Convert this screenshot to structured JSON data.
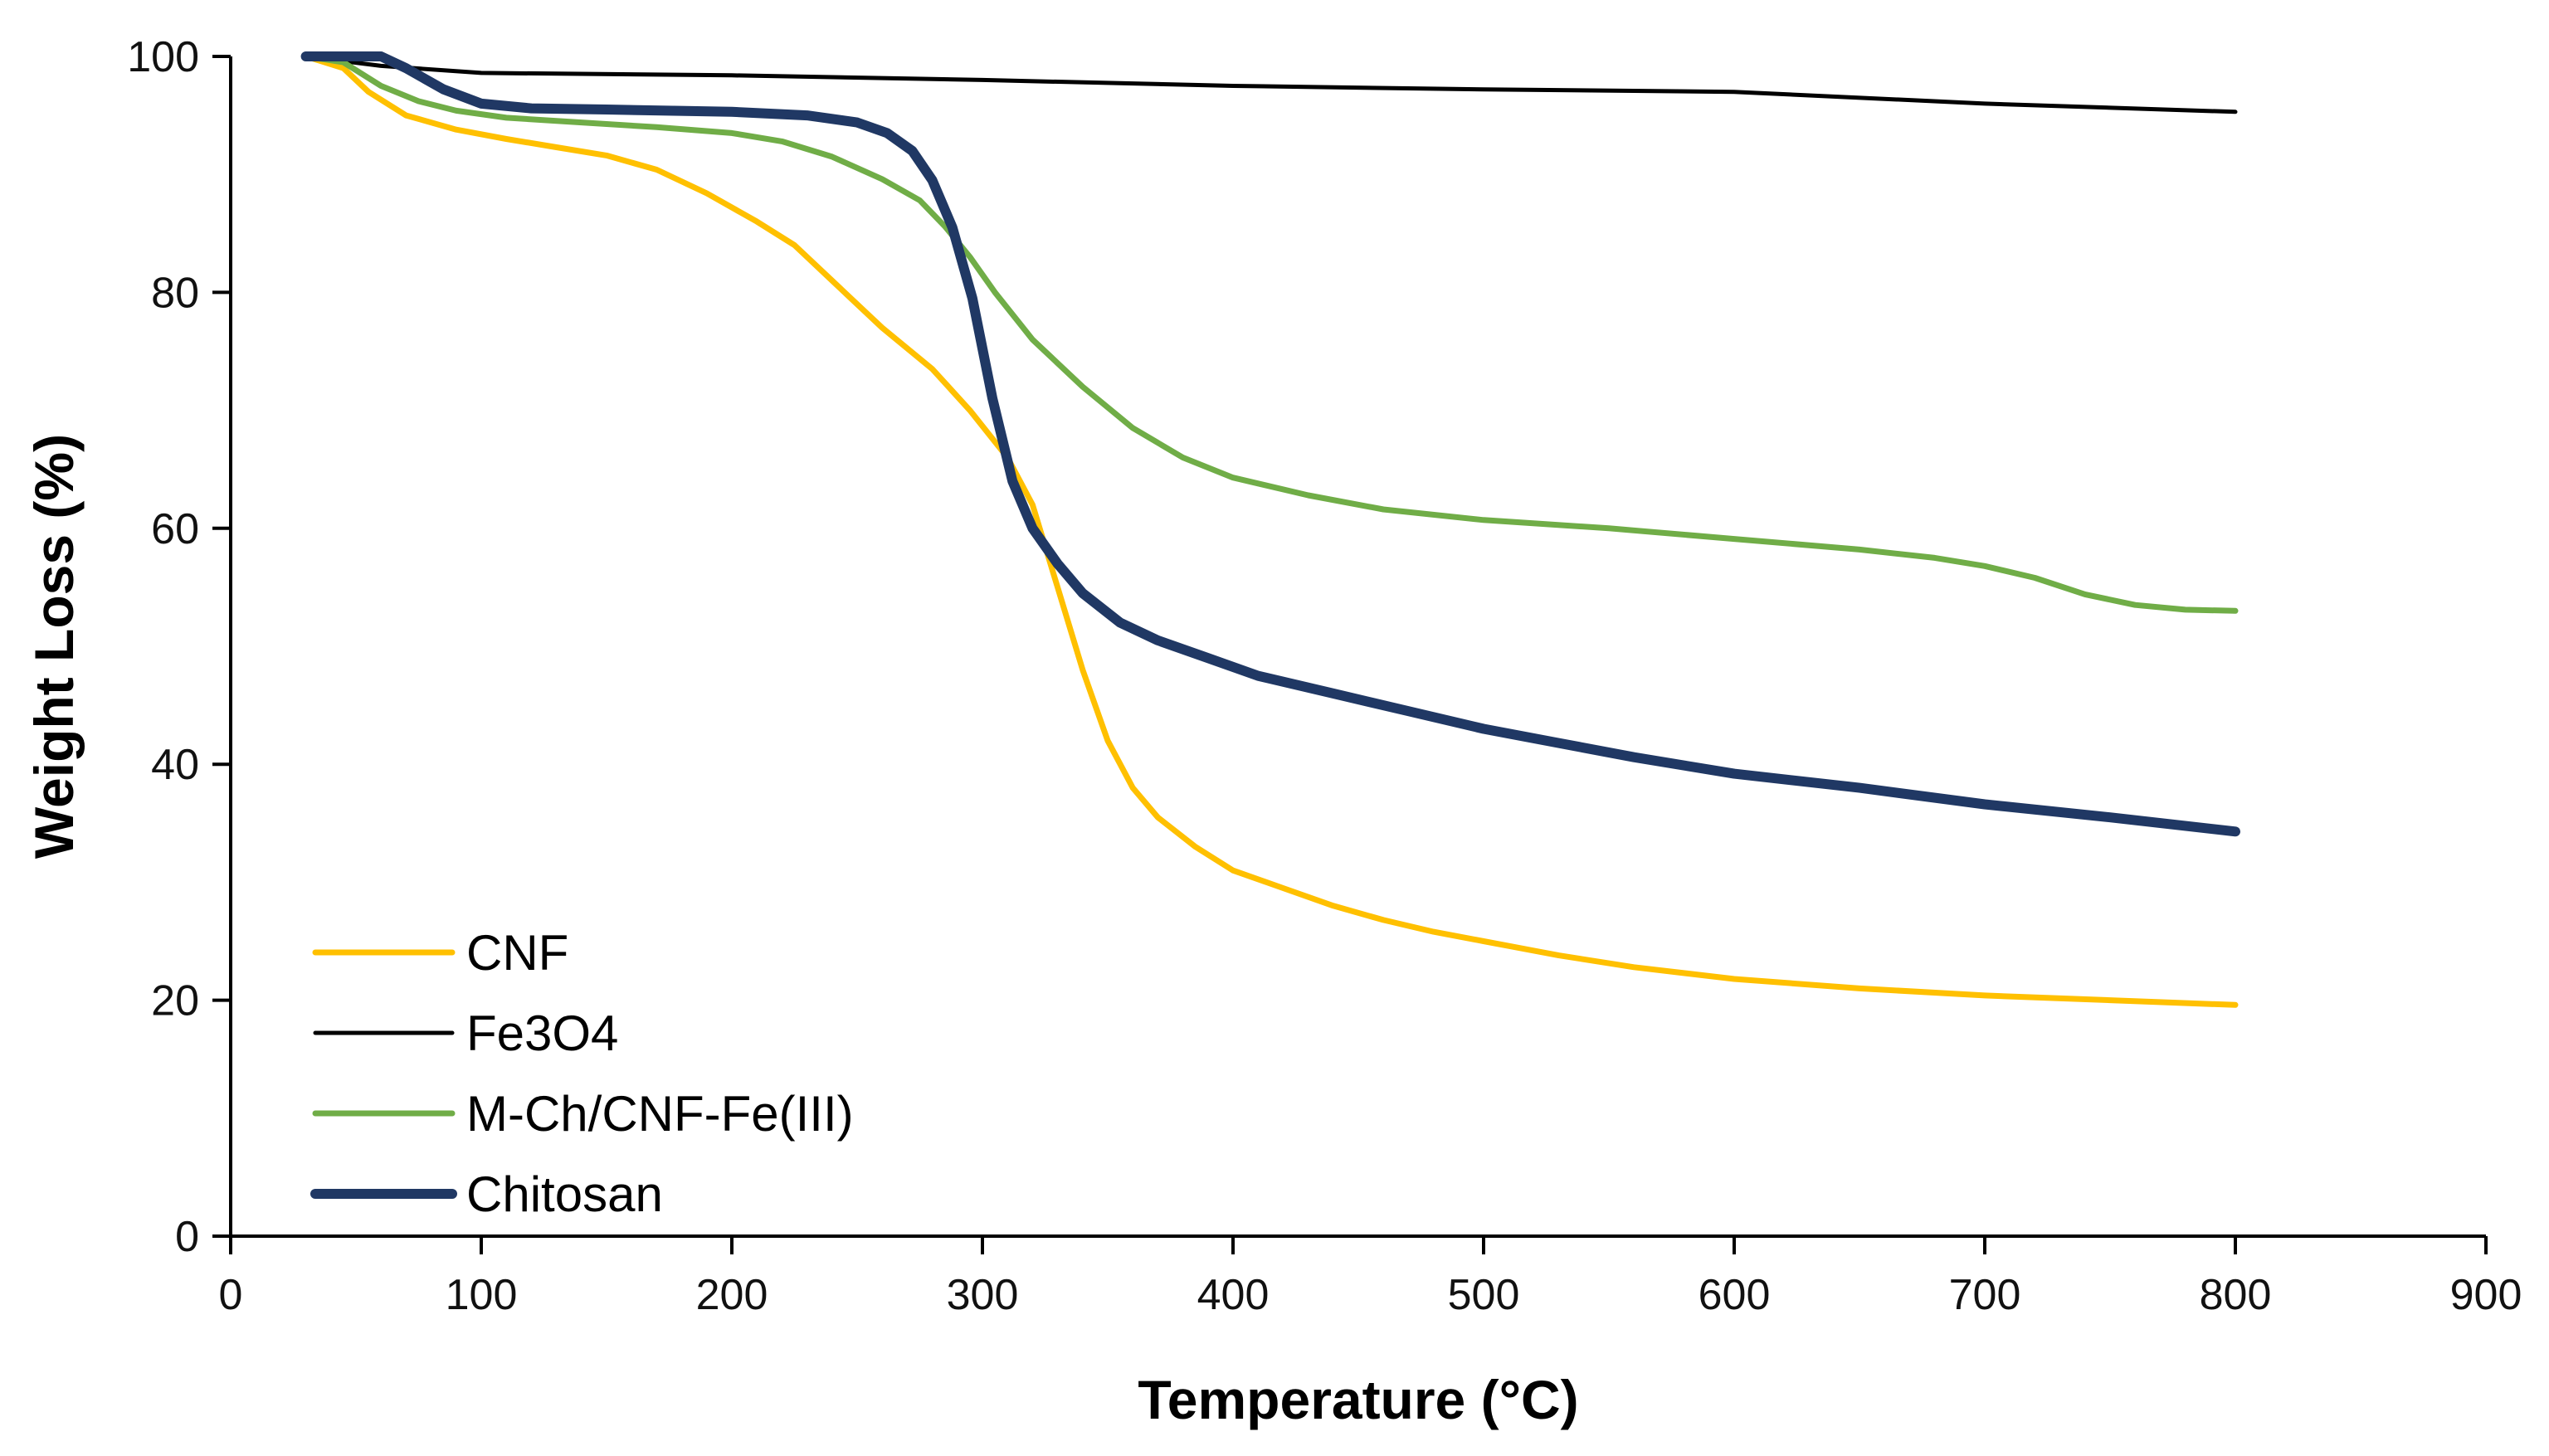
{
  "chart_data": {
    "type": "line",
    "title": "",
    "xlabel": "Temperature (°C)",
    "ylabel": "Weight Loss (%)",
    "xlim": [
      0,
      900
    ],
    "ylim": [
      0,
      100
    ],
    "xticks": [
      0,
      100,
      200,
      300,
      400,
      500,
      600,
      700,
      800,
      900
    ],
    "yticks": [
      0,
      20,
      40,
      60,
      80,
      100
    ],
    "xtick_labels": [
      "0",
      "100",
      "200",
      "300",
      "400",
      "500",
      "600",
      "700",
      "800",
      "900"
    ],
    "ytick_labels": [
      "0",
      "20",
      "40",
      "60",
      "80",
      "100"
    ],
    "grid": false,
    "legend_position": "bottom-left",
    "series": [
      {
        "name": "CNF",
        "color": "#FFC000",
        "weight": "normal",
        "x": [
          30,
          45,
          55,
          70,
          90,
          110,
          130,
          150,
          170,
          190,
          210,
          225,
          240,
          260,
          280,
          295,
          310,
          320,
          330,
          340,
          350,
          360,
          370,
          385,
          400,
          420,
          440,
          460,
          480,
          500,
          530,
          560,
          600,
          650,
          700,
          750,
          800
        ],
        "y": [
          100,
          99,
          97,
          95,
          93.8,
          93,
          92.3,
          91.6,
          90.4,
          88.4,
          86,
          84,
          81,
          77,
          73.5,
          70,
          66,
          62,
          55,
          48,
          42,
          38,
          35.5,
          33,
          31,
          29.5,
          28,
          26.8,
          25.8,
          25,
          23.8,
          22.8,
          21.8,
          21,
          20.4,
          20,
          19.6
        ]
      },
      {
        "name": "Fe3O4",
        "color": "#000000",
        "weight": "thin",
        "x": [
          30,
          60,
          100,
          200,
          300,
          400,
          500,
          600,
          700,
          800
        ],
        "y": [
          100,
          99.2,
          98.6,
          98.4,
          98,
          97.5,
          97.2,
          97,
          96,
          95.3
        ]
      },
      {
        "name": "M-Ch/CNF-Fe(III)",
        "color": "#70AD47",
        "weight": "normal",
        "x": [
          30,
          45,
          60,
          75,
          90,
          110,
          140,
          170,
          200,
          220,
          240,
          260,
          275,
          285,
          295,
          305,
          320,
          340,
          360,
          380,
          400,
          430,
          460,
          500,
          550,
          600,
          650,
          680,
          700,
          720,
          740,
          760,
          780,
          800
        ],
        "y": [
          100,
          99.5,
          97.5,
          96.2,
          95.4,
          94.8,
          94.4,
          94,
          93.5,
          92.8,
          91.5,
          89.6,
          87.8,
          85.6,
          83,
          80,
          76,
          72,
          68.5,
          66,
          64.3,
          62.8,
          61.6,
          60.7,
          60,
          59.1,
          58.2,
          57.5,
          56.8,
          55.8,
          54.4,
          53.5,
          53.1,
          53
        ]
      },
      {
        "name": "Chitosan",
        "color": "#203864",
        "weight": "thick",
        "x": [
          30,
          40,
          60,
          70,
          85,
          100,
          120,
          150,
          200,
          230,
          250,
          262,
          272,
          280,
          288,
          296,
          304,
          312,
          320,
          330,
          340,
          355,
          370,
          390,
          410,
          440,
          470,
          500,
          530,
          560,
          600,
          650,
          700,
          750,
          800
        ],
        "y": [
          100,
          100,
          100,
          99,
          97.2,
          96,
          95.6,
          95.5,
          95.3,
          95,
          94.4,
          93.5,
          92,
          89.5,
          85.5,
          79.5,
          71,
          64,
          60,
          57,
          54.5,
          52,
          50.5,
          49,
          47.5,
          46,
          44.5,
          43,
          41.8,
          40.6,
          39.2,
          38,
          36.6,
          35.5,
          34.3
        ]
      }
    ]
  }
}
